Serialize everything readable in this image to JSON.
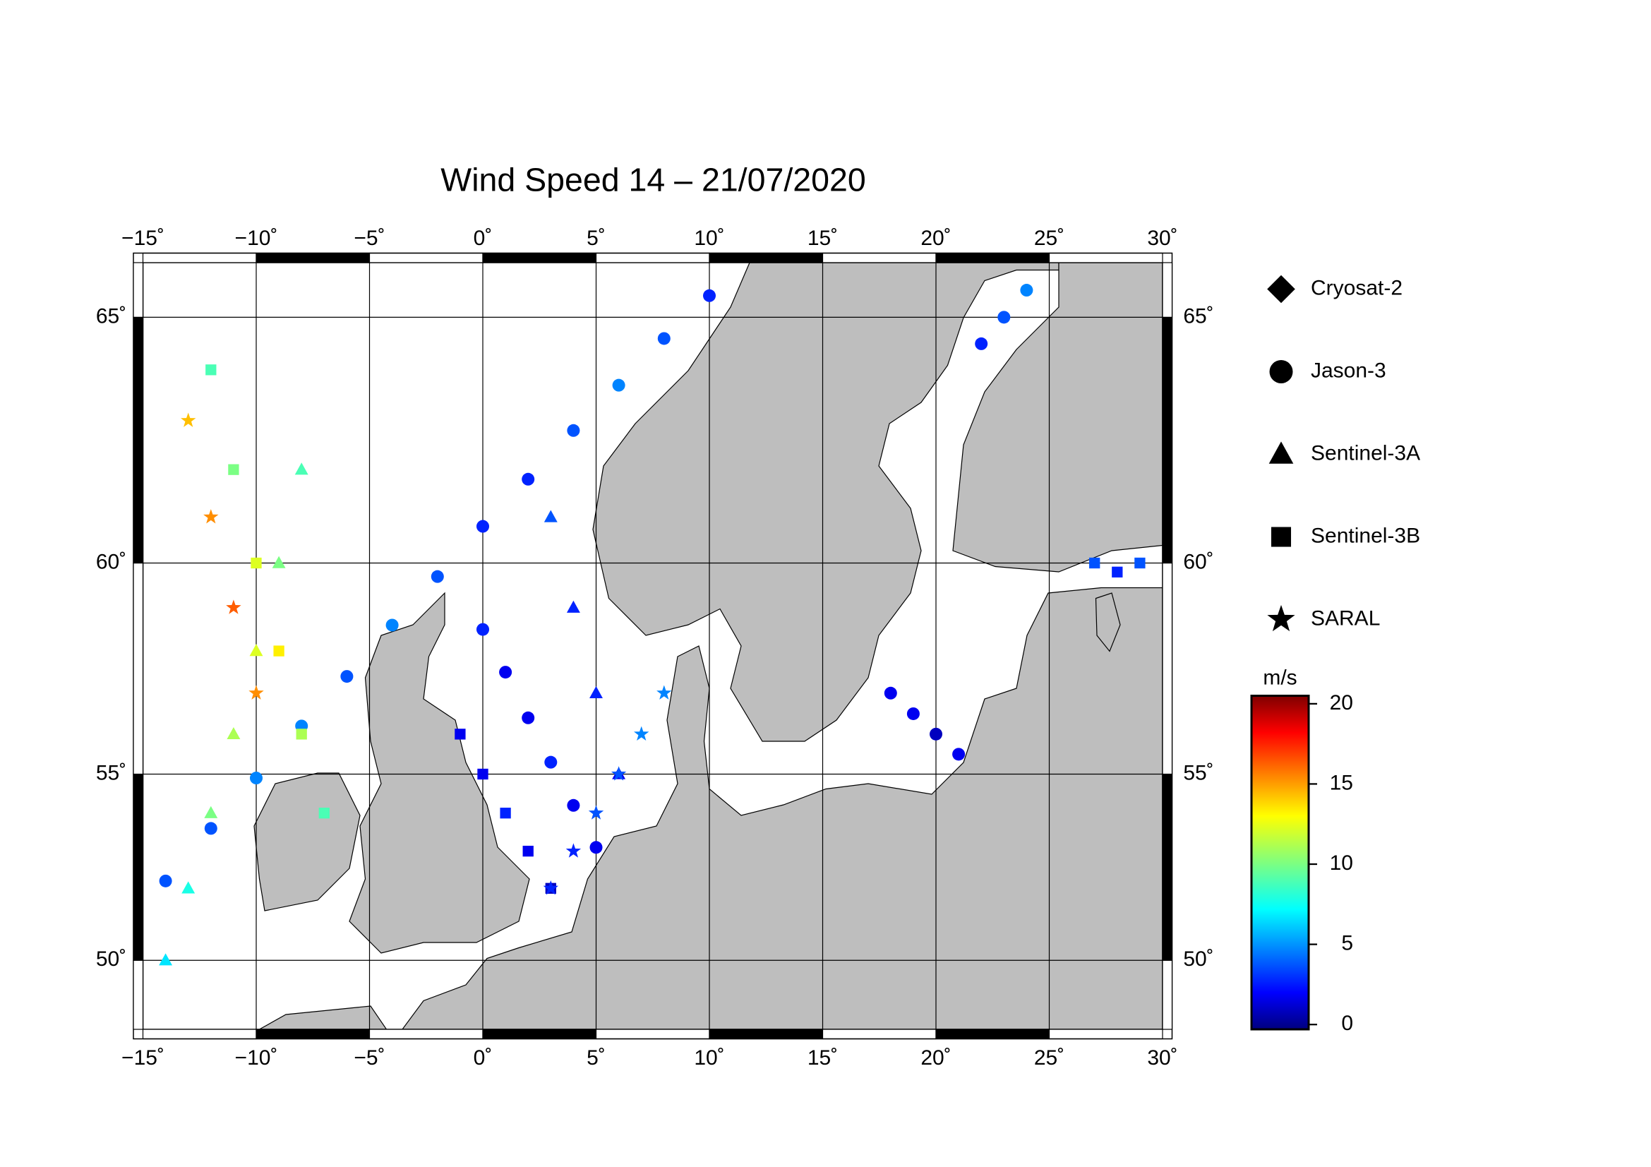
{
  "chart_data": {
    "type": "scatter",
    "title": "Wind Speed 14 – 21/07/2020",
    "projection": "mercator",
    "xlim": [
      -15,
      30
    ],
    "ylim": [
      48,
      66
    ],
    "xticks": [
      {
        "value": -15,
        "label": "−15˚"
      },
      {
        "value": -10,
        "label": "−10˚"
      },
      {
        "value": -5,
        "label": "−5˚"
      },
      {
        "value": 0,
        "label": "0˚"
      },
      {
        "value": 5,
        "label": "5˚"
      },
      {
        "value": 10,
        "label": "10˚"
      },
      {
        "value": 15,
        "label": "15˚"
      },
      {
        "value": 20,
        "label": "20˚"
      },
      {
        "value": 25,
        "label": "25˚"
      },
      {
        "value": 30,
        "label": "30˚"
      }
    ],
    "yticks": [
      {
        "value": 50,
        "label": "50˚"
      },
      {
        "value": 55,
        "label": "55˚"
      },
      {
        "value": 60,
        "label": "60˚"
      },
      {
        "value": 65,
        "label": "65˚"
      }
    ],
    "grid": true,
    "series": [
      {
        "name": "Cryosat-2",
        "marker": "diamond",
        "x": [],
        "y": [],
        "values": []
      },
      {
        "name": "Jason-3",
        "marker": "circle",
        "x": [
          -14,
          -12,
          -10,
          -8,
          -6,
          -4,
          -2,
          0,
          2,
          4,
          6,
          8,
          10,
          0,
          1,
          2,
          3,
          4,
          5,
          18,
          19,
          20,
          21,
          22,
          23,
          24
        ],
        "y": [
          52.2,
          53.6,
          54.9,
          56.2,
          57.4,
          58.6,
          59.7,
          60.8,
          61.8,
          62.8,
          63.7,
          64.6,
          65.4,
          58.5,
          57.5,
          56.4,
          55.3,
          54.2,
          53.1,
          57,
          56.5,
          56,
          55.5,
          64.5,
          65,
          65.5
        ],
        "values": [
          4,
          4,
          5,
          5,
          4,
          5,
          4,
          3,
          3,
          4,
          5,
          4,
          3,
          3,
          2,
          2,
          3,
          2,
          2,
          2,
          2,
          1,
          2,
          3,
          4,
          5
        ]
      },
      {
        "name": "Sentinel-3A",
        "marker": "triangle",
        "x": [
          -14,
          -13,
          -12,
          -11,
          -10,
          -9,
          -8,
          3,
          4,
          5,
          6
        ],
        "y": [
          50,
          52,
          54,
          56,
          58,
          60,
          62,
          61,
          59,
          57,
          55
        ],
        "values": [
          7,
          8,
          10,
          11,
          12,
          10,
          9,
          4,
          3,
          3,
          2
        ]
      },
      {
        "name": "Sentinel-3B",
        "marker": "square",
        "x": [
          -12,
          -11,
          -10,
          -9,
          -8,
          -7,
          -1,
          0,
          1,
          2,
          3,
          27,
          28,
          29
        ],
        "y": [
          64,
          62,
          60,
          58,
          56,
          54,
          56,
          55,
          54,
          53,
          52,
          60,
          59.8,
          60
        ],
        "values": [
          9,
          10,
          12,
          13,
          11,
          9,
          2,
          2,
          3,
          2,
          1,
          4,
          3,
          4
        ]
      },
      {
        "name": "SARAL",
        "marker": "star",
        "x": [
          -13,
          -12,
          -11,
          -10,
          3,
          4,
          5,
          6,
          7,
          8
        ],
        "y": [
          63,
          61,
          59,
          57,
          52,
          53,
          54,
          55,
          56,
          57
        ],
        "values": [
          14,
          15,
          16,
          15,
          3,
          3,
          4,
          4,
          5,
          5
        ]
      }
    ],
    "colorbar": {
      "label": "m/s",
      "colormap": "jet",
      "clim": [
        -0.3,
        20.5
      ],
      "ticks": [
        0,
        5,
        10,
        15,
        20
      ]
    }
  }
}
